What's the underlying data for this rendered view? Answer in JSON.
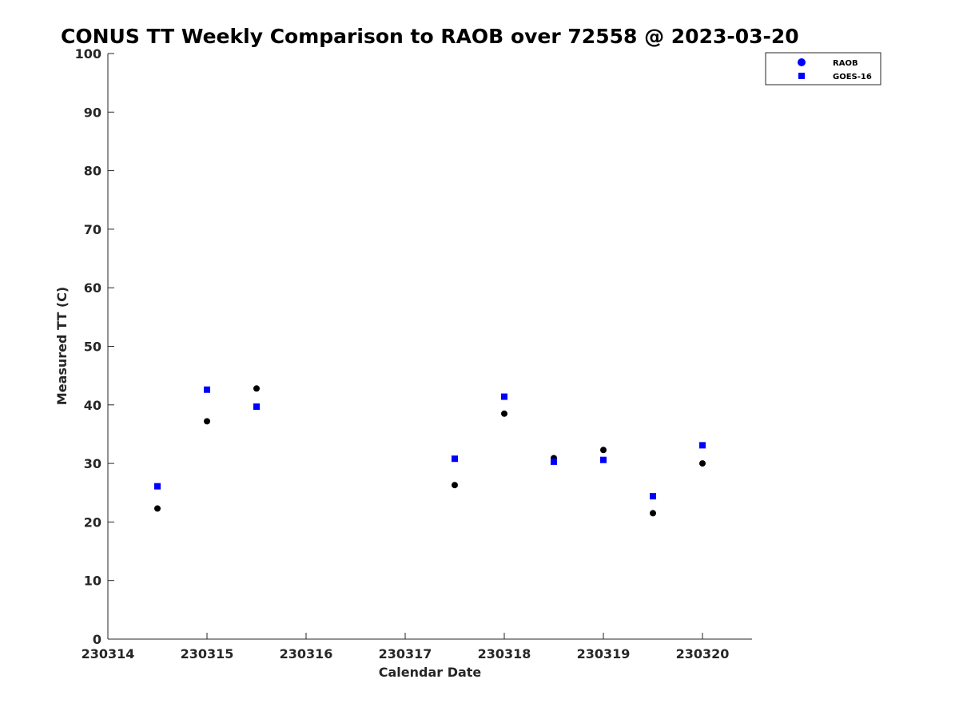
{
  "chart_data": {
    "type": "scatter",
    "title": "CONUS TT Weekly Comparison to RAOB over 72558 @ 2023-03-20",
    "xlabel": "Calendar Date",
    "ylabel": "Measured TT (C)",
    "xlim": [
      230314,
      230320.5
    ],
    "ylim": [
      0,
      100
    ],
    "xticks": [
      230314,
      230315,
      230316,
      230317,
      230318,
      230319,
      230320
    ],
    "xtick_labels": [
      "230314",
      "230315",
      "230316",
      "230317",
      "230318",
      "230319",
      "230320"
    ],
    "yticks": [
      0,
      10,
      20,
      30,
      40,
      50,
      60,
      70,
      80,
      90,
      100
    ],
    "ytick_labels": [
      "0",
      "10",
      "20",
      "30",
      "40",
      "50",
      "60",
      "70",
      "80",
      "90",
      "100"
    ],
    "grid": false,
    "legend_position": "top-right",
    "series": [
      {
        "name": "RAOB",
        "marker": "circle",
        "color": "#000000",
        "legend_color": "#0000ff",
        "x": [
          230314.5,
          230315,
          230315.5,
          230317.5,
          230318,
          230318.5,
          230319,
          230319.5,
          230320
        ],
        "y": [
          22.3,
          37.2,
          42.8,
          26.3,
          38.5,
          30.9,
          32.3,
          21.5,
          30.0
        ]
      },
      {
        "name": "GOES-16",
        "marker": "square",
        "color": "#0000ff",
        "legend_color": "#0000ff",
        "x": [
          230314.5,
          230315,
          230315.5,
          230317.5,
          230318,
          230318.5,
          230319,
          230319.5,
          230320
        ],
        "y": [
          26.1,
          42.6,
          39.7,
          30.8,
          41.4,
          30.3,
          30.6,
          24.4,
          33.1
        ]
      }
    ]
  }
}
